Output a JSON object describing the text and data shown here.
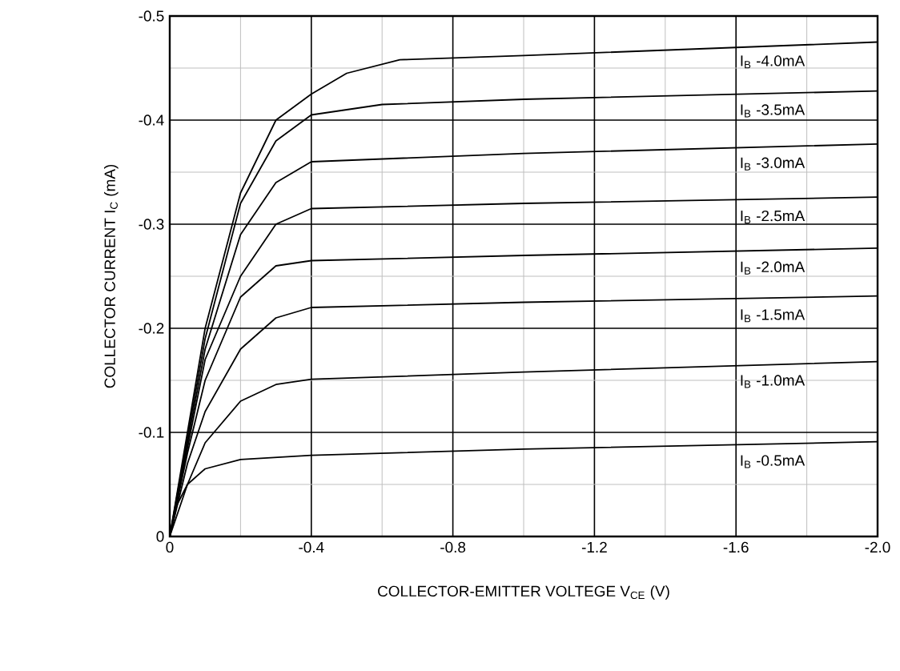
{
  "chart_data": {
    "type": "line",
    "xlabel": "COLLECTOR-EMITTER VOLTEGE V$_{CE}$ (V)",
    "ylabel": "COLLECTOR CURRENT I$_{C}$ (mA)",
    "xlim": [
      0,
      -2.0
    ],
    "ylim": [
      0,
      -0.5
    ],
    "xticks": [
      0,
      -0.4,
      -0.8,
      -1.2,
      -1.6,
      {
        "value": -2.0,
        "label": "-2.0"
      }
    ],
    "yticks": [
      0,
      -0.1,
      -0.2,
      -0.3,
      -0.4,
      -0.5
    ],
    "grid": true,
    "series": [
      {
        "name": "I$_{B}$  -4.0mA",
        "color": "#000000",
        "x": [
          0,
          -0.05,
          -0.1,
          -0.2,
          -0.3,
          -0.4,
          -0.5,
          -0.65,
          -1.0,
          -2.0
        ],
        "values": [
          0,
          -0.1,
          -0.2,
          -0.33,
          -0.4,
          -0.425,
          -0.445,
          -0.458,
          -0.462,
          -0.475
        ]
      },
      {
        "name": "I$_{B}$  -3.5mA",
        "color": "#000000",
        "x": [
          0,
          -0.05,
          -0.1,
          -0.2,
          -0.3,
          -0.4,
          -0.6,
          -1.0,
          -2.0
        ],
        "values": [
          0,
          -0.095,
          -0.19,
          -0.32,
          -0.38,
          -0.405,
          -0.415,
          -0.42,
          -0.428
        ]
      },
      {
        "name": "I$_{B}$  -3.0mA",
        "color": "#000000",
        "x": [
          0,
          -0.05,
          -0.1,
          -0.2,
          -0.3,
          -0.4,
          -1.0,
          -2.0
        ],
        "values": [
          0,
          -0.09,
          -0.18,
          -0.29,
          -0.34,
          -0.36,
          -0.368,
          -0.377
        ]
      },
      {
        "name": "I$_{B}$  -2.5mA",
        "color": "#000000",
        "x": [
          0,
          -0.05,
          -0.1,
          -0.2,
          -0.3,
          -0.4,
          -1.0,
          -2.0
        ],
        "values": [
          0,
          -0.085,
          -0.17,
          -0.25,
          -0.3,
          -0.315,
          -0.32,
          -0.326
        ]
      },
      {
        "name": "I$_{B}$  -2.0mA",
        "color": "#000000",
        "x": [
          0,
          -0.05,
          -0.1,
          -0.2,
          -0.3,
          -0.4,
          -1.0,
          -2.0
        ],
        "values": [
          0,
          -0.08,
          -0.15,
          -0.23,
          -0.26,
          -0.265,
          -0.27,
          -0.277
        ]
      },
      {
        "name": "I$_{B}$  -1.5mA",
        "color": "#000000",
        "x": [
          0,
          -0.05,
          -0.1,
          -0.2,
          -0.3,
          -0.4,
          -1.0,
          -2.0
        ],
        "values": [
          0,
          -0.07,
          -0.12,
          -0.18,
          -0.21,
          -0.22,
          -0.225,
          -0.231
        ]
      },
      {
        "name": "I$_{B}$  -1.0mA",
        "color": "#000000",
        "x": [
          0,
          -0.05,
          -0.1,
          -0.2,
          -0.3,
          -0.4,
          -1.0,
          -2.0
        ],
        "values": [
          0,
          -0.05,
          -0.09,
          -0.13,
          -0.146,
          -0.151,
          -0.158,
          -0.168
        ]
      },
      {
        "name": "I$_{B}$  -0.5mA",
        "color": "#000000",
        "x": [
          0,
          -0.02,
          -0.05,
          -0.1,
          -0.2,
          -0.4,
          -1.0,
          -2.0
        ],
        "values": [
          0,
          -0.03,
          -0.05,
          -0.065,
          -0.074,
          -0.078,
          -0.084,
          -0.091
        ]
      }
    ]
  }
}
